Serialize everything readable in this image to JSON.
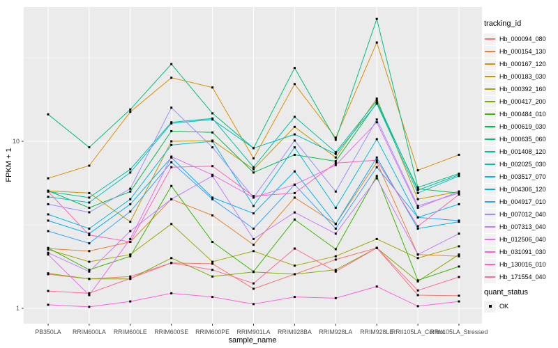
{
  "figure": {
    "background": "#FFFFFF",
    "panel_background": "#EBEBEB",
    "grid_color": "#FFFFFF",
    "tick_color": "#333333",
    "tick_text_color": "#4D4D4D",
    "marker_color": "#000000"
  },
  "axes": {
    "x_title": "sample_name",
    "y_title": "FPKM + 1",
    "y_tick_labels": [
      "1",
      "10"
    ]
  },
  "legend": {
    "title": "tracking_id",
    "quant_title": "quant_status",
    "quant_items": [
      {
        "label": "OK",
        "marker": "black-square"
      }
    ]
  },
  "chart_data": {
    "type": "line",
    "title": "",
    "xlabel": "sample_name",
    "ylabel": "FPKM + 1",
    "y_scale": "log10",
    "y_ticks": [
      1,
      10
    ],
    "y_minor_ticks": [
      3.162,
      31.62
    ],
    "ylim": [
      0.81,
      64
    ],
    "grid": true,
    "legend_position": "right",
    "point_marker": "black-square",
    "quant_status": "OK",
    "categories": [
      "PB350LA",
      "RRIM600LA",
      "RRIM600LE",
      "RRIM600SE",
      "RRIM600PE",
      "RRIM901LA",
      "RRIM928BA",
      "RRIM928LA",
      "RRIM928LE",
      "RRII105LA_Control",
      "RRII105LA_Stressed"
    ],
    "series": [
      {
        "name": "Hb_000094_080",
        "color": "#F8766D",
        "values": [
          1.6,
          1.5,
          1.55,
          1.87,
          1.85,
          1.31,
          1.6,
          1.96,
          2.3,
          1.2,
          1.19
        ]
      },
      {
        "name": "Hb_000154_130",
        "color": "#EA8331",
        "values": [
          2.28,
          2.2,
          2.5,
          4.5,
          3.6,
          2.4,
          4.6,
          3.2,
          7.5,
          2.1,
          2.05
        ]
      },
      {
        "name": "Hb_000167_120",
        "color": "#D89000",
        "values": [
          6.0,
          7.15,
          15.0,
          24.0,
          21.0,
          7.9,
          22.0,
          10.5,
          39.0,
          6.7,
          8.3
        ]
      },
      {
        "name": "Hb_000183_030",
        "color": "#C09B00",
        "values": [
          5.05,
          4.9,
          3.3,
          10.0,
          10.1,
          6.8,
          12.2,
          8.0,
          18.0,
          4.5,
          5.0
        ]
      },
      {
        "name": "Hb_000392_160",
        "color": "#A3A500",
        "values": [
          2.25,
          1.9,
          2.1,
          3.2,
          1.9,
          2.2,
          1.8,
          2.05,
          2.6,
          2.0,
          2.35
        ]
      },
      {
        "name": "Hb_000417_200",
        "color": "#7CAE00",
        "values": [
          1.62,
          1.5,
          1.5,
          2.0,
          1.55,
          1.65,
          1.6,
          1.7,
          2.3,
          1.45,
          2.1
        ]
      },
      {
        "name": "Hb_000484_010",
        "color": "#39B600",
        "values": [
          2.3,
          1.7,
          2.05,
          5.4,
          2.5,
          1.66,
          3.4,
          2.26,
          6.2,
          1.47,
          1.78
        ]
      },
      {
        "name": "Hb_000619_030",
        "color": "#00BB4E",
        "values": [
          5.06,
          4.0,
          5.0,
          11.5,
          11.3,
          6.5,
          8.3,
          7.6,
          17.0,
          5.2,
          4.9
        ]
      },
      {
        "name": "Hb_000635_060",
        "color": "#00BF7D",
        "values": [
          14.5,
          9.2,
          15.5,
          29.0,
          14.7,
          9.1,
          27.5,
          10.2,
          54.0,
          5.3,
          6.4
        ]
      },
      {
        "name": "Hb_001408_120",
        "color": "#00C1A3",
        "values": [
          5.0,
          4.6,
          6.8,
          13.0,
          13.7,
          7.0,
          14.0,
          8.6,
          17.5,
          5.1,
          6.3
        ]
      },
      {
        "name": "Hb_002025_030",
        "color": "#00BFC4",
        "values": [
          4.65,
          4.3,
          6.5,
          12.8,
          13.5,
          9.1,
          11.0,
          8.4,
          16.8,
          4.9,
          6.2
        ]
      },
      {
        "name": "Hb_003517_070",
        "color": "#00BAE0",
        "values": [
          3.65,
          3.0,
          4.5,
          9.5,
          10.0,
          4.1,
          9.2,
          4.0,
          10.3,
          3.5,
          4.2
        ]
      },
      {
        "name": "Hb_004306_120",
        "color": "#00B0F6",
        "values": [
          3.35,
          2.8,
          4.2,
          8.0,
          4.6,
          3.7,
          6.6,
          3.2,
          8.0,
          3.0,
          3.3
        ]
      },
      {
        "name": "Hb_004917_010",
        "color": "#35A2FF",
        "values": [
          2.9,
          2.45,
          3.8,
          7.5,
          4.5,
          3.0,
          5.5,
          3.0,
          7.0,
          3.5,
          3.35
        ]
      },
      {
        "name": "Hb_007012_040",
        "color": "#9590FF",
        "values": [
          4.2,
          3.76,
          5.2,
          15.9,
          9.2,
          4.6,
          10.1,
          5.0,
          13.5,
          4.1,
          4.9
        ]
      },
      {
        "name": "Hb_007313_040",
        "color": "#C77CFF",
        "values": [
          2.15,
          1.66,
          2.9,
          4.5,
          6.2,
          2.6,
          3.75,
          2.8,
          6.0,
          2.1,
          2.8
        ]
      },
      {
        "name": "Hb_012506_040",
        "color": "#E76BF3",
        "values": [
          2.1,
          1.2,
          2.6,
          8.1,
          6.3,
          4.6,
          5.5,
          7.2,
          13.0,
          4.0,
          5.0
        ]
      },
      {
        "name": "Hb_031091_030",
        "color": "#FA62DB",
        "values": [
          1.05,
          1.02,
          1.1,
          1.23,
          1.17,
          1.06,
          1.17,
          1.15,
          1.35,
          1.03,
          1.1
        ]
      },
      {
        "name": "Hb_130016_010",
        "color": "#FF62BC",
        "values": [
          5.0,
          2.75,
          2.5,
          7.0,
          7.1,
          4.7,
          4.9,
          7.4,
          7.7,
          3.1,
          4.8
        ]
      },
      {
        "name": "Hb_171554_040",
        "color": "#FF6A98",
        "values": [
          1.27,
          1.23,
          1.51,
          1.87,
          1.7,
          1.41,
          2.28,
          1.66,
          2.3,
          1.28,
          1.54
        ]
      }
    ]
  }
}
